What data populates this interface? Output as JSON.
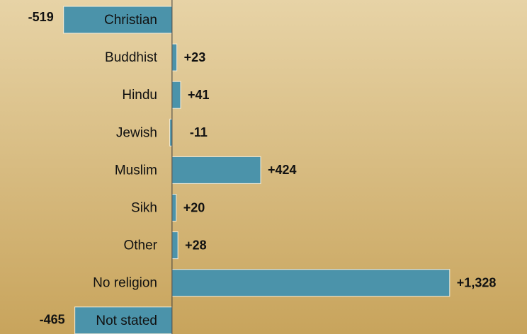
{
  "chart_data": {
    "type": "hbar",
    "categories": [
      "Christian",
      "Buddhist",
      "Hindu",
      "Jewish",
      "Muslim",
      "Sikh",
      "Other",
      "No religion",
      "Not stated"
    ],
    "values": [
      -519,
      23,
      41,
      -11,
      424,
      20,
      28,
      1328,
      -465
    ],
    "value_labels": [
      "-519",
      "+23",
      "+41",
      "-11",
      "+424",
      "+20",
      "+28",
      "+1,328",
      "-465"
    ],
    "color": "#4b93aa",
    "xlim": [
      -823,
      1698
    ]
  }
}
